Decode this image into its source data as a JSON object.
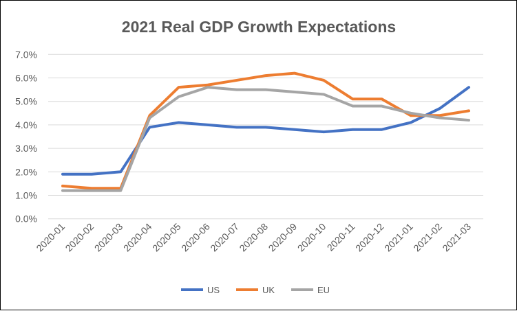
{
  "chart_data": {
    "type": "line",
    "title": "2021 Real GDP Growth Expectations",
    "xlabel": "",
    "ylabel": "",
    "categories": [
      "2020-01",
      "2020-02",
      "2020-03",
      "2020-04",
      "2020-05",
      "2020-06",
      "2020-07",
      "2020-08",
      "2020-09",
      "2020-10",
      "2020-11",
      "2020-12",
      "2021-01",
      "2021-02",
      "2021-03"
    ],
    "ylim": [
      0,
      7
    ],
    "yticks": [
      "0.0%",
      "1.0%",
      "2.0%",
      "3.0%",
      "4.0%",
      "5.0%",
      "6.0%",
      "7.0%"
    ],
    "grid": true,
    "legend": "bottom",
    "series": [
      {
        "name": "US",
        "color": "#4472C4",
        "values": [
          1.9,
          1.9,
          2.0,
          3.9,
          4.1,
          4.0,
          3.9,
          3.9,
          3.8,
          3.7,
          3.8,
          3.8,
          4.1,
          4.7,
          5.6
        ]
      },
      {
        "name": "UK",
        "color": "#ED7D31",
        "values": [
          1.4,
          1.3,
          1.3,
          4.4,
          5.6,
          5.7,
          5.9,
          6.1,
          6.2,
          5.9,
          5.1,
          5.1,
          4.4,
          4.4,
          4.6
        ]
      },
      {
        "name": "EU",
        "color": "#A5A5A5",
        "values": [
          1.2,
          1.2,
          1.2,
          4.3,
          5.2,
          5.6,
          5.5,
          5.5,
          5.4,
          5.3,
          4.8,
          4.8,
          4.5,
          4.3,
          4.2
        ]
      }
    ]
  }
}
